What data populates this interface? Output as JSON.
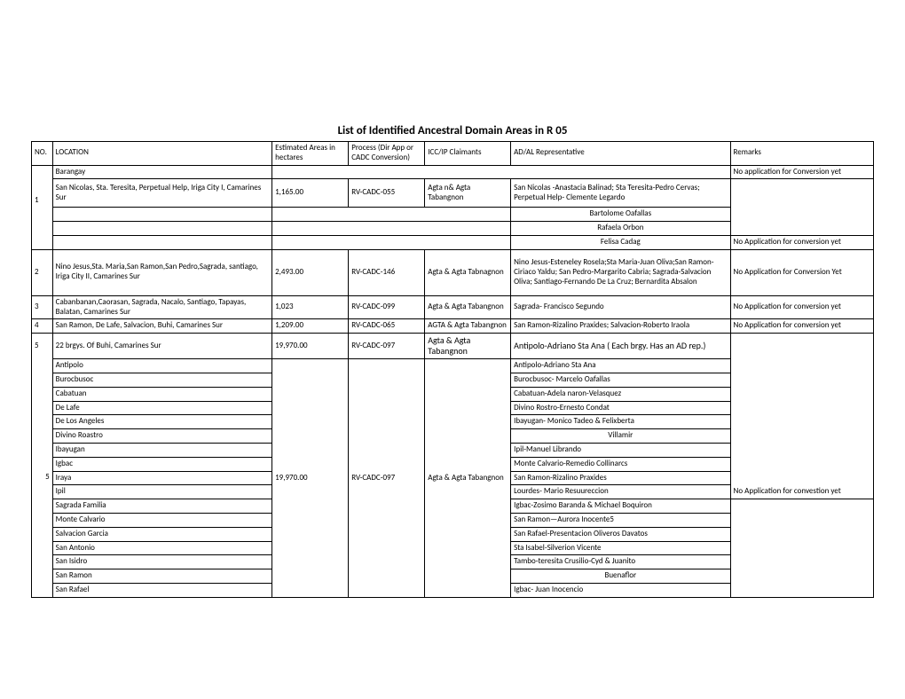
{
  "title": "List of Identified Ancestral Domain Areas in R 05",
  "headers": {
    "no": "NO.",
    "location": "LOCATION",
    "estimated": "Estimated Areas in hectares",
    "process": "Process (Dir App or CADC Conversion)",
    "icc": "ICC/IP Claimants",
    "ad": "AD/AL Representative",
    "remarks": "Remarks"
  },
  "barangay_label": "Barangay",
  "no_app_conv": "No application for Conversion yet",
  "row1": {
    "no": "1",
    "location": "San Nicolas,  Sta. Teresita, Perpetual Help, Iriga City I, Camarines Sur",
    "est": "1,165.00",
    "proc": "RV-CADC-055",
    "icc": "Agta  n& Agta Tabangnon",
    "ad": "San Nicolas -Anastacia Balinad; Sta Teresita-Pedro Cervas; Perpetual Help- Clemente Legardo",
    "sub1": "Bartolome Oafallas",
    "sub2": "Rafaela Orbon",
    "sub3": "Felisa Cadag",
    "sub3_rem": "No Application for conversion yet"
  },
  "row2": {
    "no": "2",
    "location": "Nino Jesus,Sta. Maria,San Ramon,San Pedro,Sagrada, santiago, Iriga City II, Camarines Sur",
    "est": "2,493.00",
    "proc": "RV-CADC-146",
    "icc": "Agta & Agta Tabnagnon",
    "ad": "Nino Jesus-Esteneley Rosela;Sta Maria-Juan Oliva;San Ramon-Ciriaco Yaldu; San Pedro-Margarito Cabria; Sagrada-Salvacion Oliva; Santiago-Fernando De La Cruz; Bernardita Absalon",
    "rem": "No Application for Conversion Yet"
  },
  "row3": {
    "no": "3",
    "location": "Cabanbanan,Caorasan, Sagrada, Nacalo, Santiago, Tapayas, Balatan, Camarines Sur",
    "est": "1,023",
    "proc": "RV-CADC-099",
    "icc": "Agta & Agta Tabangnon",
    "ad": "Sagrada- Francisco Segundo",
    "rem": "No Application for conversion yet"
  },
  "row4": {
    "no": "4",
    "location": "San Ramon, De Lafe, Salvacion, Buhi, Camarines Sur",
    "est": "1,209.00",
    "proc": "RV-CADC-065",
    "icc": "AGTA & Agta Tabangnon",
    "ad": "San Ramon-Rizalino Praxides; Salvacion-Roberto Iraola",
    "rem": "No Application for conversion yet"
  },
  "row5": {
    "no": "5",
    "location": "22 brgys. Of Buhi, Camarines Sur",
    "est": "19,970.00",
    "proc": "RV-CADC-097",
    "icc": "Agta & Agta Tabangnon",
    "ad": "Antipolo-Adriano Sta Ana ( Each brgy. Has an AD rep.)"
  },
  "detail": {
    "no": "5",
    "est": "19,970.00",
    "proc": "RV-CADC-097",
    "icc": "Agta & Agta Tabangnon",
    "rem": "No Application for convestion yet",
    "rows": [
      {
        "loc": "Antipolo",
        "ad": "Antipolo-Adriano Sta Ana"
      },
      {
        "loc": "Burocbusoc",
        "ad": "Burocbusoc- Marcelo Oafallas"
      },
      {
        "loc": "Cabatuan",
        "ad": "Cabatuan-Adela naron-Velasquez"
      },
      {
        "loc": "De Lafe",
        "ad": "Divino Rostro-Ernesto Condat"
      },
      {
        "loc": "De Los Angeles",
        "ad": "Ibayugan- Monico Tadeo & Felixberta"
      },
      {
        "loc": "Divino Roastro",
        "ad": "Villamir",
        "ad_center": true
      },
      {
        "loc": "Ibayugan",
        "ad": "Ipil-Manuel Librando"
      },
      {
        "loc": "Igbac",
        "ad": "Monte Calvario-Remedio Collinarcs"
      },
      {
        "loc": "Iraya",
        "ad": "San Ramon-Rizalino Praxides"
      },
      {
        "loc": "Ipil",
        "ad": "Lourdes- Mario Resuureccion"
      },
      {
        "loc": "Sagrada Familia",
        "ad": "Igbac-Zosimo Baranda & Michael Boquiron"
      },
      {
        "loc": "Monte Calvario",
        "ad": "San Ramon—Aurora Inocente5"
      },
      {
        "loc": "Salvacion Garcia",
        "ad": "San Rafael-Presentacion Oliveros Davatos"
      },
      {
        "loc": "San Antonio",
        "ad": "Sta Isabel-Silverion Vicente"
      },
      {
        "loc": "San Isidro",
        "ad": "Tambo-teresita Crusilio-Cyd & Juanito"
      },
      {
        "loc": "San Ramon",
        "ad": "Buenaflor",
        "ad_center": true
      },
      {
        "loc": "San Rafael",
        "ad": "Igbac- Juan Inocencio"
      }
    ]
  }
}
